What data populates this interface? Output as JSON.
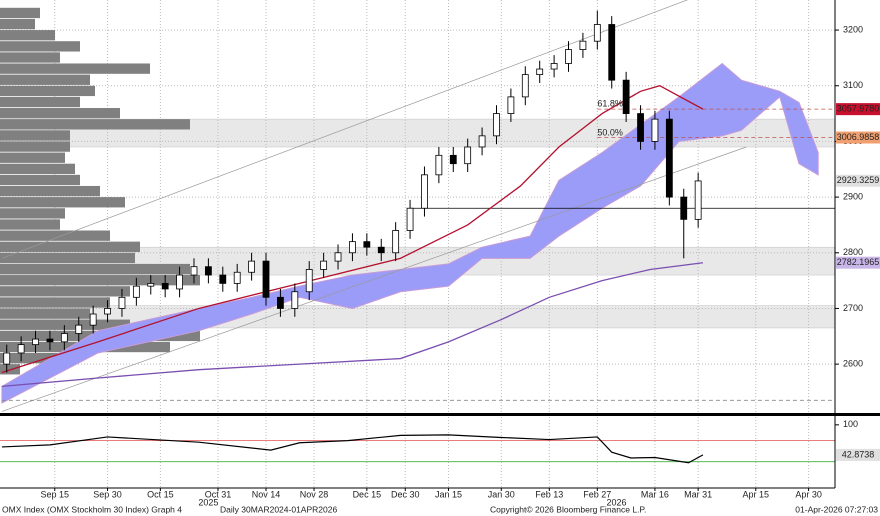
{
  "chart_data": {
    "type": "candlestick",
    "xlim": [
      -0.4,
      173.5
    ],
    "ylim": [
      2514,
      3254
    ],
    "yticks": [
      2600,
      2700,
      2800,
      2900,
      3000,
      3100,
      3200
    ],
    "xticks": [
      {
        "value": 11,
        "label": "Sep 15"
      },
      {
        "value": 22,
        "label": "Sep 30"
      },
      {
        "value": 33,
        "label": "Oct 15"
      },
      {
        "value": 45,
        "label": "Oct 31"
      },
      {
        "value": 55,
        "label": "Nov 14"
      },
      {
        "value": 65,
        "label": "Nov 28"
      },
      {
        "value": 76,
        "label": "Dec 15"
      },
      {
        "value": 84,
        "label": "Dec 30"
      },
      {
        "value": 93,
        "label": "Jan 15"
      },
      {
        "value": 104,
        "label": "Jan 30"
      },
      {
        "value": 114,
        "label": "Feb 13"
      },
      {
        "value": 124,
        "label": "Feb 27"
      },
      {
        "value": 136,
        "label": "Mar 16"
      },
      {
        "value": 145,
        "label": "Mar 31"
      },
      {
        "value": 157,
        "label": "Apr 15"
      },
      {
        "value": 168,
        "label": "Apr 30"
      }
    ],
    "years": [
      {
        "value": 43,
        "label": "2025"
      },
      {
        "value": 128,
        "label": "2026"
      }
    ],
    "grid": true,
    "candles": {
      "up_color": "#ffffff",
      "down_color": "#000000",
      "x": [
        1,
        4,
        7,
        10,
        13,
        16,
        19,
        22,
        25,
        28,
        31,
        34,
        37,
        40,
        43,
        46,
        49,
        52,
        55,
        58,
        61,
        64,
        67,
        70,
        73,
        76,
        79,
        82,
        85,
        88,
        91,
        94,
        97,
        100,
        103,
        106,
        109,
        112,
        115,
        118,
        121,
        124,
        127,
        130,
        133,
        136,
        139,
        142,
        145
      ],
      "open": [
        2600,
        2620,
        2635,
        2645,
        2640,
        2655,
        2670,
        2690,
        2700,
        2720,
        2740,
        2745,
        2735,
        2760,
        2775,
        2760,
        2745,
        2765,
        2785,
        2720,
        2700,
        2730,
        2770,
        2785,
        2800,
        2820,
        2810,
        2800,
        2840,
        2880,
        2940,
        2975,
        2960,
        2990,
        3010,
        3050,
        3080,
        3120,
        3130,
        3140,
        3165,
        3180,
        3210,
        3110,
        3050,
        3000,
        3040,
        2900,
        2860
      ],
      "high": [
        2635,
        2650,
        2660,
        2660,
        2670,
        2685,
        2705,
        2715,
        2735,
        2755,
        2760,
        2760,
        2775,
        2790,
        2790,
        2775,
        2780,
        2800,
        2800,
        2735,
        2745,
        2785,
        2800,
        2815,
        2835,
        2835,
        2825,
        2855,
        2895,
        2955,
        2990,
        2990,
        3005,
        3025,
        3065,
        3095,
        3135,
        3145,
        3155,
        3180,
        3195,
        3235,
        3225,
        3125,
        3065,
        3055,
        3055,
        2915,
        2944
      ],
      "low": [
        2585,
        2605,
        2620,
        2625,
        2625,
        2640,
        2655,
        2675,
        2685,
        2705,
        2725,
        2720,
        2720,
        2745,
        2745,
        2730,
        2730,
        2750,
        2705,
        2685,
        2685,
        2715,
        2755,
        2770,
        2785,
        2795,
        2785,
        2785,
        2825,
        2865,
        2925,
        2945,
        2945,
        2975,
        2995,
        3035,
        3065,
        3105,
        3115,
        3125,
        3150,
        3165,
        3095,
        3035,
        2985,
        2985,
        2885,
        2790,
        2845
      ],
      "close": [
        2620,
        2635,
        2645,
        2640,
        2655,
        2670,
        2690,
        2700,
        2720,
        2740,
        2745,
        2735,
        2760,
        2775,
        2760,
        2745,
        2765,
        2785,
        2720,
        2700,
        2730,
        2770,
        2785,
        2800,
        2820,
        2810,
        2800,
        2840,
        2880,
        2940,
        2975,
        2960,
        2990,
        3010,
        3050,
        3080,
        3120,
        3130,
        3140,
        3165,
        3180,
        3210,
        3110,
        3050,
        3000,
        3040,
        2900,
        2860,
        2929
      ]
    },
    "cloud": {
      "color": "#9a9cf8",
      "edge": "#c79bd8",
      "x": [
        0,
        20,
        41,
        52,
        62,
        73,
        83,
        93,
        100,
        110,
        116,
        125,
        133,
        141,
        150,
        154,
        162,
        166,
        170
      ],
      "upper": [
        2560,
        2660,
        2700,
        2720,
        2740,
        2760,
        2770,
        2780,
        2810,
        2830,
        2930,
        2980,
        3030,
        3080,
        3140,
        3110,
        3090,
        3070,
        2980
      ],
      "lower": [
        2530,
        2620,
        2660,
        2690,
        2720,
        2700,
        2730,
        2740,
        2790,
        2790,
        2830,
        2880,
        2920,
        3000,
        3010,
        3020,
        3080,
        2960,
        2940
      ]
    },
    "lines": [
      {
        "color": "#b3122e",
        "x": [
          0,
          20,
          41,
          62,
          83,
          97,
          108,
          116,
          125,
          133,
          137,
          146
        ],
        "values": [
          2585,
          2640,
          2700,
          2745,
          2790,
          2850,
          2920,
          2990,
          3050,
          3090,
          3100,
          3058
        ]
      },
      {
        "color": "#7a4fb0",
        "x": [
          0,
          20,
          41,
          62,
          83,
          93,
          104,
          114,
          125,
          135,
          146
        ],
        "values": [
          2560,
          2575,
          2590,
          2600,
          2610,
          2640,
          2680,
          2720,
          2750,
          2770,
          2782
        ]
      }
    ],
    "trendlines": [
      {
        "x": [
          0,
          143
        ],
        "values": [
          2790,
          3255
        ]
      },
      {
        "x": [
          0,
          155
        ],
        "values": [
          2515,
          2990
        ]
      }
    ],
    "bands": [
      [
        2990,
        3040
      ],
      [
        2760,
        2810
      ],
      [
        2665,
        2705
      ]
    ],
    "dashed_levels": [
      {
        "value": 3057.978,
        "from": 124
      },
      {
        "value": 3006.9858,
        "from": 124
      },
      {
        "value": 2535,
        "from": 0
      }
    ],
    "support": {
      "value": 2880,
      "from": 85
    },
    "fib": [
      {
        "value": 3067,
        "x": 124,
        "label": "61.8%"
      },
      {
        "value": 3015,
        "x": 124,
        "label": "50.0%"
      }
    ],
    "profile": {
      "color": "#808080",
      "xlim": [
        0,
        230
      ],
      "levels": [
        3230,
        3210,
        3190,
        3170,
        3150,
        3130,
        3110,
        3090,
        3070,
        3050,
        3030,
        3010,
        2990,
        2970,
        2950,
        2930,
        2910,
        2890,
        2870,
        2850,
        2830,
        2810,
        2790,
        2770,
        2750,
        2730,
        2710,
        2690,
        2670,
        2650,
        2630,
        2610,
        2590
      ],
      "values": [
        40,
        35,
        55,
        80,
        60,
        150,
        90,
        95,
        80,
        120,
        190,
        70,
        70,
        65,
        75,
        80,
        100,
        125,
        65,
        60,
        110,
        140,
        135,
        190,
        200,
        130,
        110,
        90,
        130,
        200,
        170,
        60,
        20
      ]
    },
    "price_labels": [
      {
        "value": 3057.978,
        "label": "3057.9780",
        "color": "#c8102e",
        "text_color": "#ffffff"
      },
      {
        "value": 3006.9858,
        "label": "3006.9858",
        "color": "#f0a070",
        "text_color": "#000000"
      },
      {
        "value": 2929.3259,
        "label": "2929.3259",
        "color": "#e0e0e0",
        "text_color": "#000000"
      },
      {
        "value": 2782.1965,
        "label": "2782.1965",
        "color": "#c9b6e8",
        "text_color": "#000000"
      }
    ],
    "lower": {
      "ylim": [
        -20,
        113
      ],
      "yticks": [
        100
      ],
      "line_color": "#000000",
      "x": [
        0,
        10,
        22,
        41,
        56,
        62,
        72,
        83,
        93,
        104,
        114,
        124,
        127,
        131,
        136,
        143,
        146
      ],
      "values": [
        58,
        62,
        77,
        67,
        52,
        66,
        70,
        80,
        81,
        76,
        72,
        77,
        48,
        37,
        38,
        28,
        42.8738
      ],
      "levels": [
        {
          "value": 70,
          "color": "#e05050"
        },
        {
          "value": 30,
          "color": "#40b040"
        }
      ],
      "last_label": {
        "value": 42.8738,
        "label": "42.8738"
      }
    },
    "footer": {
      "left": "OMX Index (OMX Stockholm 30 Index) Graph 4",
      "period": "Daily 30MAR2024-01APR2026",
      "copyright": "Copyright© 2026 Bloomberg Finance L.P.",
      "stamp": "01-Apr-2026 07:27:03"
    }
  }
}
